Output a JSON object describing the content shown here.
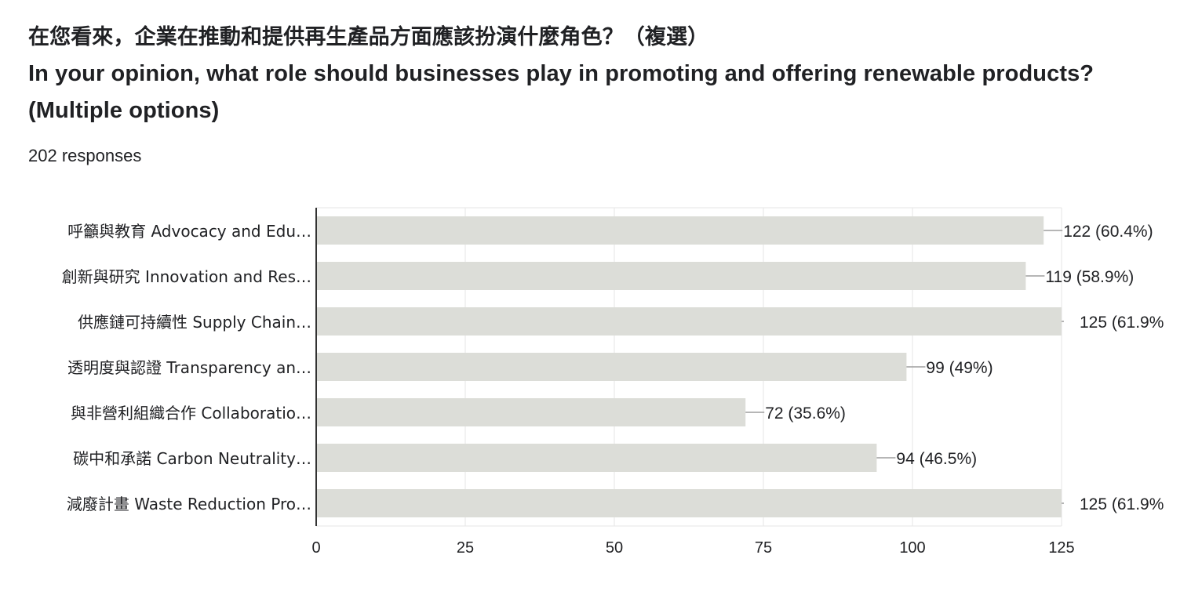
{
  "question": {
    "title_zh": "在您看來，企業在推動和提供再生產品方面應該扮演什麼角色？（複選）",
    "title_en_line1": "In your opinion, what role should businesses play in promoting and offering renewable products?",
    "title_en_line2": "(Multiple options)",
    "responses": "202 responses"
  },
  "colors": {
    "bar": "#dcddd8",
    "grid": "#e6e6e6",
    "axis": "#333333",
    "text": "#202124",
    "leader": "#9e9e9e"
  },
  "chart_data": {
    "type": "bar",
    "orientation": "horizontal",
    "categories": [
      "呼籲與教育 Advocacy and Edu…",
      "創新與研究 Innovation and Res…",
      "供應鏈可持續性 Supply Chain…",
      "透明度與認證 Transparency an…",
      "與非營利組織合作 Collaboratio…",
      "碳中和承諾 Carbon Neutrality…",
      "減廢計畫 Waste Reduction Pro…"
    ],
    "values": [
      122,
      119,
      125,
      99,
      72,
      94,
      125
    ],
    "value_labels": [
      "122 (60.4%)",
      "119 (58.9%)",
      "125 (61.9%",
      "99 (49%)",
      "72 (35.6%)",
      "94 (46.5%)",
      "125 (61.9%"
    ],
    "xlim": [
      0,
      125
    ],
    "xticks": [
      0,
      25,
      50,
      75,
      100,
      125
    ],
    "xtick_labels": [
      "0",
      "25",
      "50",
      "75",
      "100",
      "125"
    ],
    "grid": true,
    "legend": "none"
  }
}
